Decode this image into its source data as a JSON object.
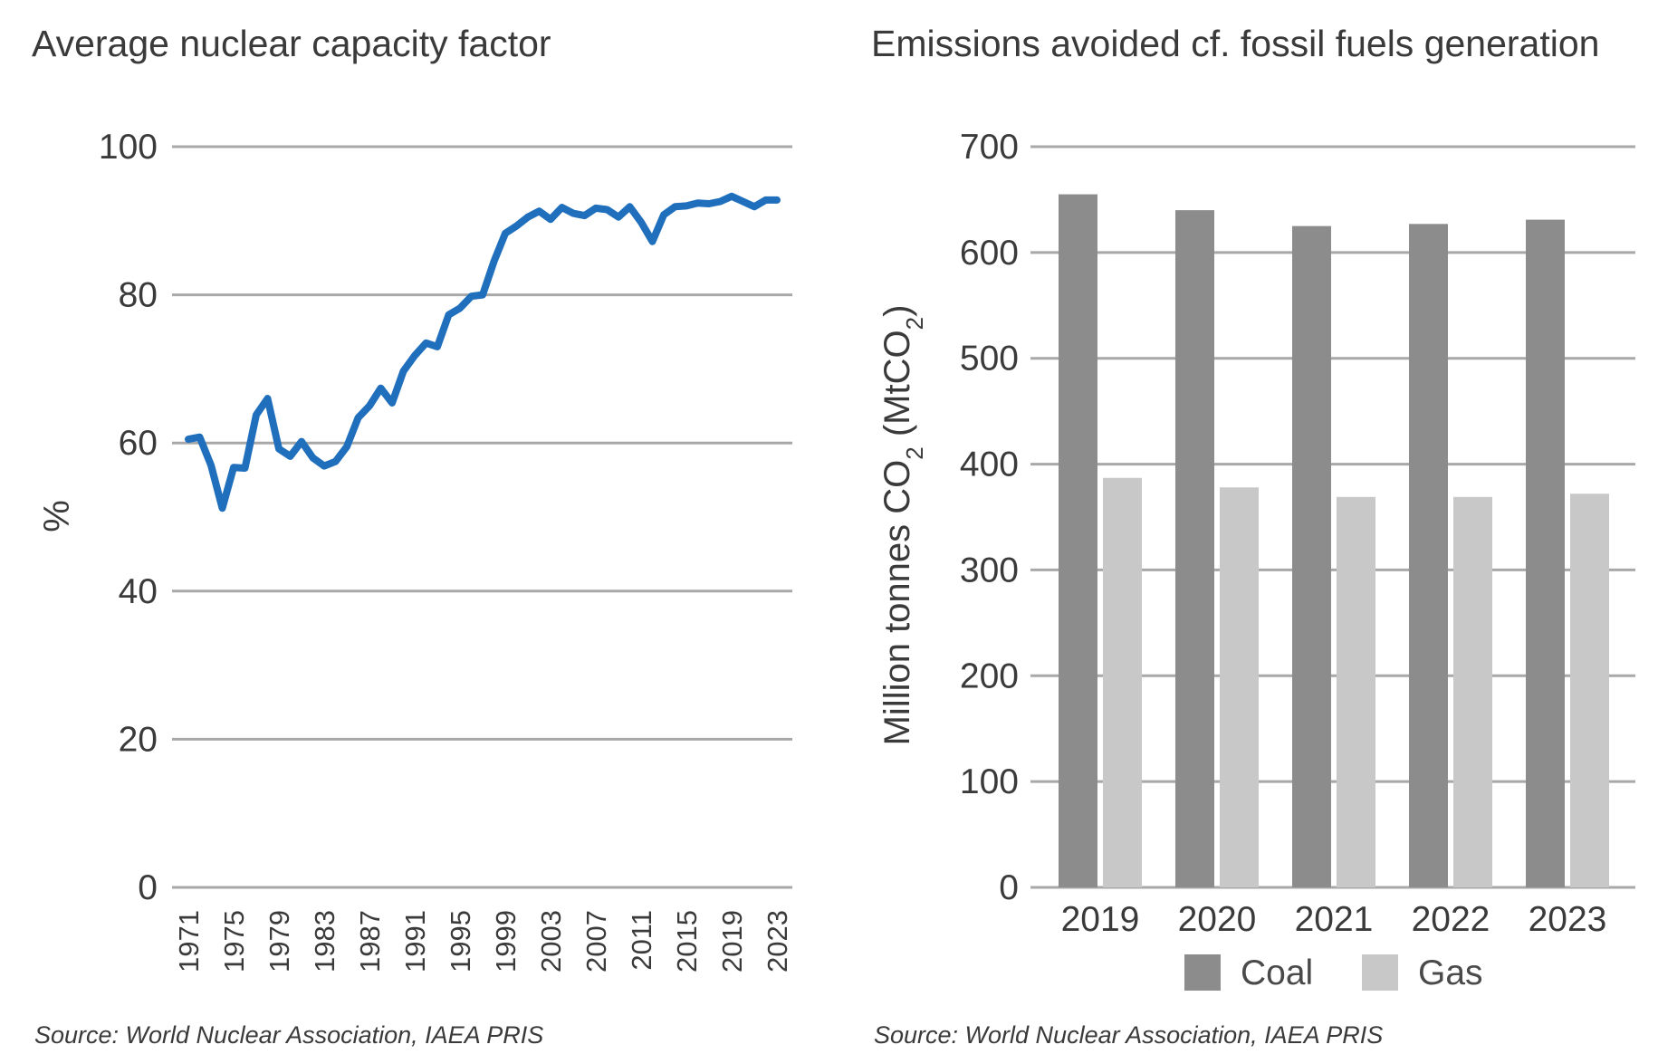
{
  "colors": {
    "line": "#1f6fbd",
    "coal": "#8c8c8c",
    "gas": "#c8c8c8",
    "grid": "#a8a8a8",
    "text": "#3a3a3a"
  },
  "chart_data": [
    {
      "type": "line",
      "title": "Average nuclear capacity factor",
      "xlabel": "",
      "ylabel": "%",
      "ylim": [
        0,
        100
      ],
      "yticks": [
        0,
        20,
        40,
        60,
        80,
        100
      ],
      "xtick_labels": [
        "1971",
        "1975",
        "1979",
        "1983",
        "1987",
        "1991",
        "1995",
        "1999",
        "2003",
        "2007",
        "2011",
        "2015",
        "2019",
        "2023"
      ],
      "grid": true,
      "x": [
        1971,
        1972,
        1973,
        1974,
        1975,
        1976,
        1977,
        1978,
        1979,
        1980,
        1981,
        1982,
        1983,
        1984,
        1985,
        1986,
        1987,
        1988,
        1989,
        1990,
        1991,
        1992,
        1993,
        1994,
        1995,
        1996,
        1997,
        1998,
        1999,
        2000,
        2001,
        2002,
        2003,
        2004,
        2005,
        2006,
        2007,
        2008,
        2009,
        2010,
        2011,
        2012,
        2013,
        2014,
        2015,
        2016,
        2017,
        2018,
        2019,
        2020,
        2021,
        2022,
        2023
      ],
      "series": [
        {
          "values": [
            60.5,
            60.8,
            57,
            51.2,
            56.7,
            56.6,
            63.8,
            66,
            59.2,
            58.2,
            60.2,
            58,
            56.9,
            57.5,
            59.5,
            63.4,
            65,
            67.4,
            65.4,
            69.7,
            71.8,
            73.5,
            73,
            77.3,
            78.2,
            79.8,
            80,
            84.5,
            88.3,
            89.3,
            90.5,
            91.3,
            90.2,
            91.8,
            91,
            90.7,
            91.7,
            91.5,
            90.5,
            91.9,
            89.8,
            87.2,
            90.8,
            91.9,
            92,
            92.4,
            92.3,
            92.6,
            93.3,
            92.6,
            91.9,
            92.8,
            92.8
          ]
        }
      ],
      "source": "Source: World Nuclear Association, IAEA PRIS"
    },
    {
      "type": "bar",
      "title": "Emissions avoided cf. fossil fuels generation",
      "xlabel": "",
      "ylabel": "Million tonnes CO2 (MtCO2)",
      "ylim": [
        0,
        700
      ],
      "yticks": [
        0,
        100,
        200,
        300,
        400,
        500,
        600,
        700
      ],
      "categories": [
        "2019",
        "2020",
        "2021",
        "2022",
        "2023"
      ],
      "grid": true,
      "legend": "bottom",
      "series": [
        {
          "name": "Coal",
          "values": [
            655,
            640,
            625,
            627,
            631
          ]
        },
        {
          "name": "Gas",
          "values": [
            387,
            378,
            369,
            369,
            372
          ]
        }
      ],
      "source": "Source: World Nuclear Association, IAEA PRIS"
    }
  ]
}
